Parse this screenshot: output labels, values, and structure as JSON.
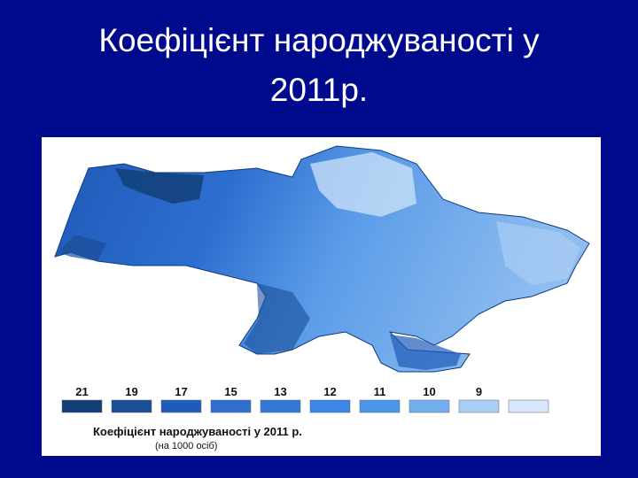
{
  "title": "Коефіцієнт народжуваності у 2011р.",
  "legend": {
    "items": [
      {
        "label": 21,
        "color": "#123f78"
      },
      {
        "label": 19,
        "color": "#1a4f96"
      },
      {
        "label": 17,
        "color": "#1f5bb8"
      },
      {
        "label": 15,
        "color": "#2e6fd0"
      },
      {
        "label": 13,
        "color": "#3478d8"
      },
      {
        "label": 12,
        "color": "#3c86e6"
      },
      {
        "label": 11,
        "color": "#4b96ea"
      },
      {
        "label": 10,
        "color": "#74b0ee"
      },
      {
        "label": 9,
        "color": "#a9cdf3"
      },
      {
        "label": null,
        "color": "#d7e8fa"
      }
    ],
    "title": "Коефіцієнт народжуваності у 2011 р.",
    "subtitle": "(на 1000 осіб)"
  }
}
